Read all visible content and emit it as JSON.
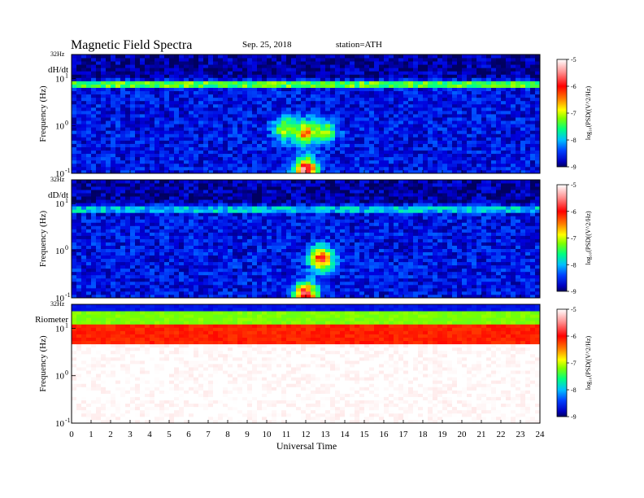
{
  "header": {
    "title": "Magnetic  Field  Spectra",
    "date": "Sep. 25, 2018",
    "station": "station=ATH"
  },
  "panels": [
    {
      "label": "dH/dt",
      "top_label": "32Hz",
      "ylabel": "Frequency  (Hz)",
      "yticks": [
        {
          "base": "10",
          "exp": "1"
        },
        {
          "base": "10",
          "exp": "0"
        },
        {
          "base": "10",
          "exp": "-1"
        }
      ]
    },
    {
      "label": "dD/dt",
      "top_label": "32Hz",
      "ylabel": "Frequency  (Hz)",
      "yticks": [
        {
          "base": "10",
          "exp": "1"
        },
        {
          "base": "10",
          "exp": "0"
        },
        {
          "base": "10",
          "exp": "-1"
        }
      ]
    },
    {
      "label": "Riometer",
      "top_label": "32Hz",
      "ylabel": "Frequency  (Hz)",
      "yticks": [
        {
          "base": "10",
          "exp": "1"
        },
        {
          "base": "10",
          "exp": "0"
        },
        {
          "base": "10",
          "exp": "-1"
        }
      ]
    }
  ],
  "colorbar": {
    "label": "log₁₀(PSD((V^2/Hz)",
    "ticks": [
      "-5",
      "-6",
      "-7",
      "-8",
      "-9"
    ],
    "colors": [
      "#000080",
      "#0000ff",
      "#0080ff",
      "#00ffff",
      "#40ff80",
      "#80ff00",
      "#ffff00",
      "#ff8000",
      "#ff0000",
      "#ff8080",
      "#ffffff"
    ]
  },
  "chart_data": {
    "type": "heatmap",
    "title": "Magnetic  Field  Spectra",
    "xlabel": "Universal Time",
    "ylabel": "Frequency  (Hz)",
    "x_ticks": [
      "0",
      "1",
      "2",
      "3",
      "4",
      "5",
      "6",
      "7",
      "8",
      "9",
      "10",
      "11",
      "12",
      "13",
      "14",
      "15",
      "16",
      "17",
      "18",
      "19",
      "20",
      "21",
      "22",
      "23",
      "24"
    ],
    "x_range": [
      0,
      24
    ],
    "y_range_hz": [
      0.1,
      32
    ],
    "y_scale": "log",
    "color_range": [
      -9,
      -5
    ],
    "panels": [
      {
        "name": "dH/dt",
        "background": -8.5,
        "bands": [
          {
            "f_lo": 6,
            "f_hi": 9,
            "t0": 0,
            "t1": 24,
            "value": -7.2
          },
          {
            "f_lo": 11,
            "f_hi": 32,
            "t0": 0,
            "t1": 24,
            "value": -8.8
          }
        ],
        "events": [
          {
            "t": 12.0,
            "f": 0.7,
            "value": -6.2
          },
          {
            "t": 12.0,
            "f": 0.12,
            "value": -5.4
          },
          {
            "t": 11.0,
            "f": 0.9,
            "value": -6.8
          },
          {
            "t": 13.0,
            "f": 0.8,
            "value": -7.0
          }
        ]
      },
      {
        "name": "dD/dt",
        "background": -8.5,
        "bands": [
          {
            "f_lo": 6,
            "f_hi": 9,
            "t0": 0,
            "t1": 24,
            "value": -7.8
          },
          {
            "f_lo": 11,
            "f_hi": 32,
            "t0": 0,
            "t1": 24,
            "value": -8.8
          }
        ],
        "events": [
          {
            "t": 12.8,
            "f": 0.7,
            "value": -5.8
          },
          {
            "t": 12.0,
            "f": 0.12,
            "value": -5.6
          }
        ]
      },
      {
        "name": "Riometer",
        "background": -5.0,
        "bands": [
          {
            "f_lo": 24,
            "f_hi": 32,
            "t0": 0,
            "t1": 24,
            "value": -8.5
          },
          {
            "f_lo": 12,
            "f_hi": 24,
            "t0": 0,
            "t1": 24,
            "value": -7.0
          },
          {
            "f_lo": 5,
            "f_hi": 12,
            "t0": 0,
            "t1": 24,
            "value": -6.0
          }
        ],
        "events": []
      }
    ]
  }
}
